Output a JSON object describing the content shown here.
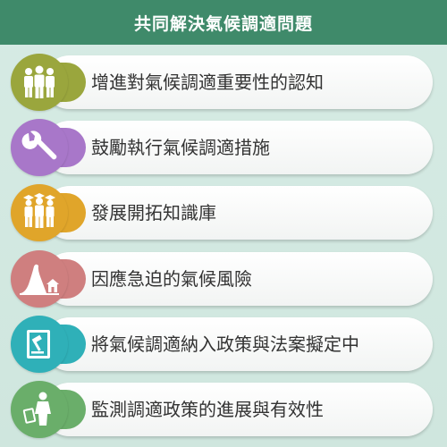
{
  "header": {
    "title": "共同解決氣候調適問題"
  },
  "items": [
    {
      "label": "增進對氣候調適重要性的認知",
      "color": "#9aa63d",
      "icon": "group-people-icon"
    },
    {
      "label": "鼓勵執行氣候調適措施",
      "color": "#a877c9",
      "icon": "wrench-icon"
    },
    {
      "label": "發展開拓知識庫",
      "color": "#e0a52a",
      "icon": "graduates-icon"
    },
    {
      "label": "因應急迫的氣候風險",
      "color": "#cf7f7f",
      "icon": "flood-house-icon"
    },
    {
      "label": "將氣候調適納入政策與法案擬定中",
      "color": "#2fb0b8",
      "icon": "gavel-law-book-icon"
    },
    {
      "label": "監測調適政策的進展與有效性",
      "color": "#6aae6a",
      "icon": "person-monitoring-icon"
    }
  ]
}
